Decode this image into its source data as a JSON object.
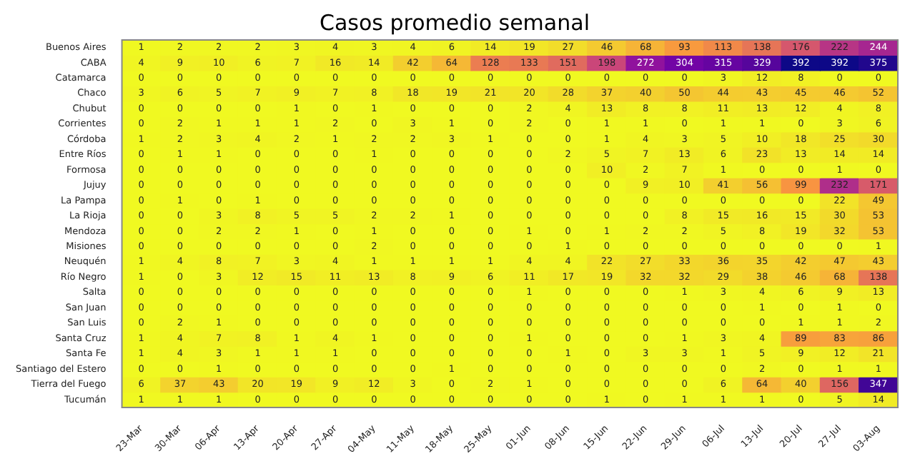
{
  "chart_data": {
    "type": "heatmap",
    "title": "Casos promedio semanal",
    "categories": [
      "23-Mar",
      "30-Mar",
      "06-Apr",
      "13-Apr",
      "20-Apr",
      "27-Apr",
      "04-May",
      "11-May",
      "18-May",
      "25-May",
      "01-Jun",
      "08-Jun",
      "15-Jun",
      "22-Jun",
      "29-Jun",
      "06-Jul",
      "13-Jul",
      "20-Jul",
      "27-Jul",
      "03-Aug"
    ],
    "y_categories": [
      "Buenos Aires",
      "CABA",
      "Catamarca",
      "Chaco",
      "Chubut",
      "Corrientes",
      "Córdoba",
      "Entre Ríos",
      "Formosa",
      "Jujuy",
      "La Pampa",
      "La Rioja",
      "Mendoza",
      "Misiones",
      "Neuquén",
      "Río Negro",
      "Salta",
      "San Juan",
      "San Luis",
      "Santa Cruz",
      "Santa Fe",
      "Santiago del Estero",
      "Tierra del Fuego",
      "Tucumán"
    ],
    "cells": [
      [
        1,
        2,
        2,
        2,
        3,
        4,
        3,
        4,
        6,
        14,
        19,
        27,
        46,
        68,
        93,
        113,
        138,
        176,
        222,
        244
      ],
      [
        4,
        9,
        10,
        6,
        7,
        16,
        14,
        42,
        64,
        128,
        133,
        151,
        198,
        272,
        304,
        315,
        329,
        392,
        392,
        375
      ],
      [
        0,
        0,
        0,
        0,
        0,
        0,
        0,
        0,
        0,
        0,
        0,
        0,
        0,
        0,
        0,
        3,
        12,
        8,
        0,
        0
      ],
      [
        3,
        6,
        5,
        7,
        9,
        7,
        8,
        18,
        19,
        21,
        20,
        28,
        37,
        40,
        50,
        44,
        43,
        45,
        46,
        52
      ],
      [
        0,
        0,
        0,
        0,
        1,
        0,
        1,
        0,
        0,
        0,
        2,
        4,
        13,
        8,
        8,
        11,
        13,
        12,
        4,
        8
      ],
      [
        0,
        2,
        1,
        1,
        1,
        2,
        0,
        3,
        1,
        0,
        2,
        0,
        1,
        1,
        0,
        1,
        1,
        0,
        3,
        6
      ],
      [
        1,
        2,
        3,
        4,
        2,
        1,
        2,
        2,
        3,
        1,
        0,
        0,
        1,
        4,
        3,
        5,
        10,
        18,
        25,
        30
      ],
      [
        0,
        1,
        1,
        0,
        0,
        0,
        1,
        0,
        0,
        0,
        0,
        2,
        5,
        7,
        13,
        6,
        23,
        13,
        14,
        14
      ],
      [
        0,
        0,
        0,
        0,
        0,
        0,
        0,
        0,
        0,
        0,
        0,
        0,
        10,
        2,
        7,
        1,
        0,
        0,
        1,
        0
      ],
      [
        0,
        0,
        0,
        0,
        0,
        0,
        0,
        0,
        0,
        0,
        0,
        0,
        0,
        9,
        10,
        41,
        56,
        99,
        232,
        171
      ],
      [
        0,
        1,
        0,
        1,
        0,
        0,
        0,
        0,
        0,
        0,
        0,
        0,
        0,
        0,
        0,
        0,
        0,
        0,
        22,
        49
      ],
      [
        0,
        0,
        3,
        8,
        5,
        5,
        2,
        2,
        1,
        0,
        0,
        0,
        0,
        0,
        8,
        15,
        16,
        15,
        30,
        53
      ],
      [
        0,
        0,
        2,
        2,
        1,
        0,
        1,
        0,
        0,
        0,
        1,
        0,
        1,
        2,
        2,
        5,
        8,
        19,
        32,
        53
      ],
      [
        0,
        0,
        0,
        0,
        0,
        0,
        2,
        0,
        0,
        0,
        0,
        1,
        0,
        0,
        0,
        0,
        0,
        0,
        0,
        1
      ],
      [
        1,
        4,
        8,
        7,
        3,
        4,
        1,
        1,
        1,
        1,
        4,
        4,
        22,
        27,
        33,
        36,
        35,
        42,
        47,
        43
      ],
      [
        1,
        0,
        3,
        12,
        15,
        11,
        13,
        8,
        9,
        6,
        11,
        17,
        19,
        32,
        32,
        29,
        38,
        46,
        68,
        138
      ],
      [
        0,
        0,
        0,
        0,
        0,
        0,
        0,
        0,
        0,
        0,
        1,
        0,
        0,
        0,
        1,
        3,
        4,
        6,
        9,
        13
      ],
      [
        0,
        0,
        0,
        0,
        0,
        0,
        0,
        0,
        0,
        0,
        0,
        0,
        0,
        0,
        0,
        0,
        1,
        0,
        1,
        0
      ],
      [
        0,
        2,
        1,
        0,
        0,
        0,
        0,
        0,
        0,
        0,
        0,
        0,
        0,
        0,
        0,
        0,
        0,
        1,
        1,
        2
      ],
      [
        1,
        4,
        7,
        8,
        1,
        4,
        1,
        0,
        0,
        0,
        1,
        0,
        0,
        0,
        1,
        3,
        4,
        89,
        83,
        86
      ],
      [
        1,
        4,
        3,
        1,
        1,
        1,
        0,
        0,
        0,
        0,
        0,
        1,
        0,
        3,
        3,
        1,
        5,
        9,
        12,
        21
      ],
      [
        0,
        0,
        1,
        0,
        0,
        0,
        0,
        0,
        1,
        0,
        0,
        0,
        0,
        0,
        0,
        0,
        2,
        0,
        1,
        1
      ],
      [
        6,
        37,
        43,
        20,
        19,
        9,
        12,
        3,
        0,
        2,
        1,
        0,
        0,
        0,
        0,
        6,
        64,
        40,
        156,
        347
      ],
      [
        1,
        1,
        1,
        0,
        0,
        0,
        0,
        0,
        0,
        0,
        0,
        0,
        1,
        0,
        1,
        1,
        1,
        0,
        5,
        14
      ]
    ],
    "data_labels": true
  }
}
